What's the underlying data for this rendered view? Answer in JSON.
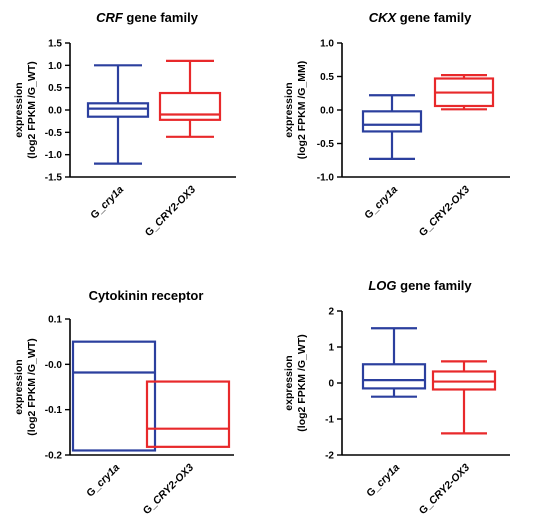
{
  "figure": {
    "colors": {
      "blue": "#2b3f9e",
      "red": "#e8292b",
      "axis": "#000000"
    }
  },
  "chart_data": [
    {
      "type": "box",
      "title_italic": "CRF",
      "title_rest": " gene family",
      "ylabel_line1": "expression",
      "ylabel_line2": "(log2 FPKM /G_WT)",
      "ylim": [
        -1.5,
        1.5
      ],
      "yticks": [
        -1.5,
        -1.0,
        -0.5,
        0.0,
        0.5,
        1.0,
        1.5
      ],
      "tick_labels": [
        "-1.5",
        "-1.0",
        "-0.5",
        "0.0",
        "0.5",
        "1.0",
        "1.5"
      ],
      "categories": [
        {
          "prefix": "G_",
          "italic": "cry1a"
        },
        {
          "prefix": "G_",
          "italic": "CRY2-OX3"
        }
      ],
      "boxes": [
        {
          "min": -1.2,
          "q1": -0.15,
          "median": 0.03,
          "q3": 0.15,
          "max": 1.0
        },
        {
          "min": -0.6,
          "q1": -0.22,
          "median": -0.1,
          "q3": 0.38,
          "max": 1.1
        }
      ]
    },
    {
      "type": "box",
      "title_italic": "CKX",
      "title_rest": " gene family",
      "ylabel_line1": "expression",
      "ylabel_line2": "(log2 FPKM /G_MM)",
      "ylim": [
        -1.0,
        1.0
      ],
      "yticks": [
        -1.0,
        -0.5,
        0.0,
        0.5,
        1.0
      ],
      "tick_labels": [
        "-1.0",
        "-0.5",
        "0.0",
        "0.5",
        "1.0"
      ],
      "categories": [
        {
          "prefix": "G_",
          "italic": "cry1a"
        },
        {
          "prefix": "G_",
          "italic": "CRY2-OX3"
        }
      ],
      "boxes": [
        {
          "min": -0.73,
          "q1": -0.32,
          "median": -0.22,
          "q3": -0.02,
          "max": 0.22
        },
        {
          "min": 0.01,
          "q1": 0.06,
          "median": 0.26,
          "q3": 0.47,
          "max": 0.52
        }
      ]
    },
    {
      "type": "box",
      "title_italic": "",
      "title_rest": "Cytokinin receptor",
      "ylabel_line1": "expression",
      "ylabel_line2": "(log2 FPKM /G_WT)",
      "ylim": [
        -0.2,
        0.1
      ],
      "yticks": [
        -0.2,
        -0.1,
        0.0,
        0.1
      ],
      "tick_labels": [
        "-0.2",
        "-0.1",
        "-0.0",
        "0.1"
      ],
      "categories": [
        {
          "prefix": "G_",
          "italic": "cry1a"
        },
        {
          "prefix": "G_",
          "italic": "CRY2-OX3"
        }
      ],
      "boxes": [
        {
          "min": -0.19,
          "q1": -0.19,
          "median": -0.018,
          "q3": 0.05,
          "max": 0.05
        },
        {
          "min": -0.182,
          "q1": -0.182,
          "median": -0.142,
          "q3": -0.038,
          "max": -0.038
        }
      ]
    },
    {
      "type": "box",
      "title_italic": "LOG",
      "title_rest": " gene family",
      "ylabel_line1": "expression",
      "ylabel_line2": "(log2 FPKM /G_WT)",
      "ylim": [
        -2,
        2
      ],
      "yticks": [
        -2,
        -1,
        0,
        1,
        2
      ],
      "tick_labels": [
        "-2",
        "-1",
        "0",
        "1",
        "2"
      ],
      "categories": [
        {
          "prefix": "G_",
          "italic": "cry1a"
        },
        {
          "prefix": "G_",
          "italic": "CRY2-OX3"
        }
      ],
      "boxes": [
        {
          "min": -0.38,
          "q1": -0.15,
          "median": 0.08,
          "q3": 0.52,
          "max": 1.52
        },
        {
          "min": -1.4,
          "q1": -0.18,
          "median": 0.04,
          "q3": 0.32,
          "max": 0.6
        }
      ]
    }
  ]
}
